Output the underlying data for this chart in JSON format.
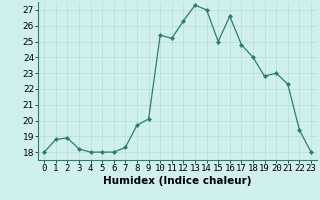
{
  "x": [
    0,
    1,
    2,
    3,
    4,
    5,
    6,
    7,
    8,
    9,
    10,
    11,
    12,
    13,
    14,
    15,
    16,
    17,
    18,
    19,
    20,
    21,
    22,
    23
  ],
  "y": [
    18,
    18.8,
    18.9,
    18.2,
    18.0,
    18.0,
    18.0,
    18.3,
    19.7,
    20.1,
    25.4,
    25.2,
    26.3,
    27.3,
    27.0,
    25.0,
    26.6,
    24.8,
    24.0,
    22.8,
    23.0,
    22.3,
    19.4,
    18.0
  ],
  "xlabel": "Humidex (Indice chaleur)",
  "ylim": [
    17.5,
    27.5
  ],
  "xlim": [
    -0.5,
    23.5
  ],
  "yticks": [
    18,
    19,
    20,
    21,
    22,
    23,
    24,
    25,
    26,
    27
  ],
  "xtick_labels": [
    "0",
    "1",
    "2",
    "3",
    "4",
    "5",
    "6",
    "7",
    "8",
    "9",
    "10",
    "11",
    "12",
    "13",
    "14",
    "15",
    "16",
    "17",
    "18",
    "19",
    "20",
    "21",
    "22",
    "23"
  ],
  "line_color": "#2d7d6e",
  "bg_color": "#cff0ee",
  "grid_color": "#b8ddd9",
  "label_fontsize": 7.5,
  "tick_fontsize": 6.5
}
